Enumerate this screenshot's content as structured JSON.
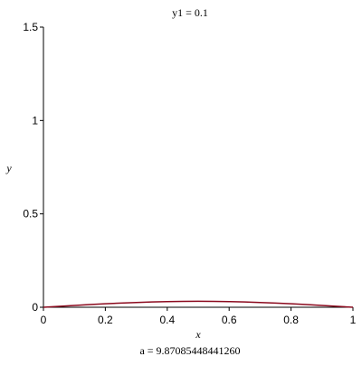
{
  "chart_data": {
    "type": "line",
    "title": "y1 = 0.1",
    "caption": "a = 9.87085448441260",
    "xlabel": "x",
    "ylabel": "y",
    "x": [
      0,
      0.05,
      0.1,
      0.15,
      0.2,
      0.25,
      0.3,
      0.35,
      0.4,
      0.45,
      0.5,
      0.55,
      0.6,
      0.65,
      0.7,
      0.75,
      0.8,
      0.85,
      0.9,
      0.95,
      1
    ],
    "series": [
      {
        "color": "#8b0a1e",
        "values": [
          0,
          0.005,
          0.0098,
          0.0144,
          0.0187,
          0.0225,
          0.0257,
          0.0283,
          0.0302,
          0.0314,
          0.0318,
          0.0314,
          0.0302,
          0.0283,
          0.0257,
          0.0225,
          0.0187,
          0.0144,
          0.0098,
          0.005,
          0
        ]
      }
    ],
    "xlim": [
      0,
      1
    ],
    "ylim": [
      0,
      1.5
    ],
    "xticks": [
      0,
      0.2,
      0.4,
      0.6,
      0.8,
      1
    ],
    "yticks": [
      0,
      0.5,
      1,
      1.5
    ]
  }
}
